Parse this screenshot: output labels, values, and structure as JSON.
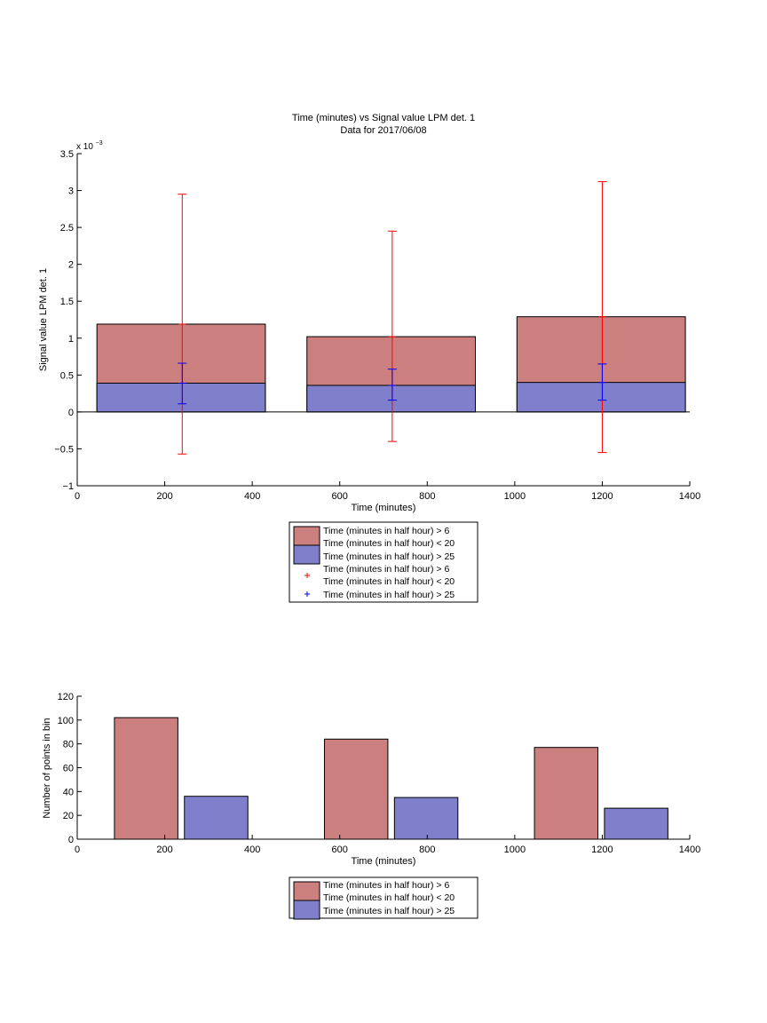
{
  "chart_data": [
    {
      "type": "bar",
      "title": "Time (minutes) vs Signal value LPM det. 1",
      "subtitle": "Data for 2017/06/08",
      "xlabel": "Time (minutes)",
      "ylabel": "Signal value LPM det. 1",
      "exponent_base": "x 10",
      "exponent_power": "−3",
      "xlim": [
        0,
        1400
      ],
      "ylim": [
        -1,
        3.5
      ],
      "xticks": [
        0,
        200,
        400,
        600,
        800,
        1000,
        1200,
        1400
      ],
      "yticks": [
        -1,
        -0.5,
        0,
        0.5,
        1,
        1.5,
        2,
        2.5,
        3,
        3.5
      ],
      "ytick_labels": [
        "−1",
        "−0.5",
        "0",
        "0.5",
        "1",
        "1.5",
        "2",
        "2.5",
        "3",
        "3.5"
      ],
      "grid": false,
      "bars": [
        {
          "x_start": 45,
          "x_end": 430,
          "value": 1.19,
          "series": 0
        },
        {
          "x_start": 45,
          "x_end": 430,
          "value": 0.39,
          "series": 1
        },
        {
          "x_start": 525,
          "x_end": 910,
          "value": 1.02,
          "series": 0
        },
        {
          "x_start": 525,
          "x_end": 910,
          "value": 0.36,
          "series": 1
        },
        {
          "x_start": 1005,
          "x_end": 1390,
          "value": 1.29,
          "series": 0
        },
        {
          "x_start": 1005,
          "x_end": 1390,
          "value": 0.4,
          "series": 1
        }
      ],
      "errorbars": [
        {
          "x": 240,
          "center": 1.19,
          "lower": -0.57,
          "upper": 2.95,
          "series": 0
        },
        {
          "x": 240,
          "center": 0.39,
          "lower": 0.11,
          "upper": 0.66,
          "series": 1
        },
        {
          "x": 720,
          "center": 1.02,
          "lower": -0.4,
          "upper": 2.45,
          "series": 0
        },
        {
          "x": 720,
          "center": 0.36,
          "lower": 0.16,
          "upper": 0.58,
          "series": 1
        },
        {
          "x": 1200,
          "center": 1.29,
          "lower": -0.55,
          "upper": 3.12,
          "series": 0
        },
        {
          "x": 1200,
          "center": 0.4,
          "lower": 0.16,
          "upper": 0.65,
          "series": 1
        }
      ],
      "legend": {
        "placement": "below",
        "entries": [
          {
            "marker": "patch",
            "color": "#cc7f7f",
            "lines": [
              "Time (minutes in half hour) > 6",
              "Time (minutes in half hour) < 20"
            ]
          },
          {
            "marker": "patch",
            "color": "#7f7fcc",
            "lines": [
              "Time (minutes in half hour) > 25"
            ]
          },
          {
            "marker": "plus",
            "color": "#ff0000",
            "lines": [
              "Time (minutes in half hour) > 6",
              "Time (minutes in half hour) < 20"
            ]
          },
          {
            "marker": "plus",
            "color": "#0000ff",
            "lines": [
              "Time (minutes in half hour) > 25"
            ]
          }
        ]
      }
    },
    {
      "type": "bar",
      "xlabel": "Time (minutes)",
      "ylabel": "Number of points in bin",
      "xlim": [
        0,
        1400
      ],
      "ylim": [
        0,
        120
      ],
      "xticks": [
        0,
        200,
        400,
        600,
        800,
        1000,
        1200,
        1400
      ],
      "yticks": [
        0,
        20,
        40,
        60,
        80,
        100,
        120
      ],
      "grid": false,
      "bars": [
        {
          "x_start": 85,
          "x_end": 230,
          "value": 102,
          "series": 0
        },
        {
          "x_start": 245,
          "x_end": 390,
          "value": 36,
          "series": 1
        },
        {
          "x_start": 565,
          "x_end": 710,
          "value": 84,
          "series": 0
        },
        {
          "x_start": 725,
          "x_end": 870,
          "value": 35,
          "series": 1
        },
        {
          "x_start": 1045,
          "x_end": 1190,
          "value": 77,
          "series": 0
        },
        {
          "x_start": 1205,
          "x_end": 1350,
          "value": 26,
          "series": 1
        }
      ],
      "legend": {
        "placement": "below",
        "entries": [
          {
            "marker": "patch",
            "color": "#cc7f7f",
            "lines": [
              "Time (minutes in half hour) > 6",
              "Time (minutes in half hour) < 20"
            ]
          },
          {
            "marker": "patch",
            "color": "#7f7fcc",
            "lines": [
              "Time (minutes in half hour) > 25"
            ]
          }
        ]
      }
    }
  ],
  "colors": {
    "series_fill": [
      "#cc7f7f",
      "#7f7fcc"
    ],
    "errorbar": [
      "#ff0000",
      "#0000ff"
    ]
  }
}
